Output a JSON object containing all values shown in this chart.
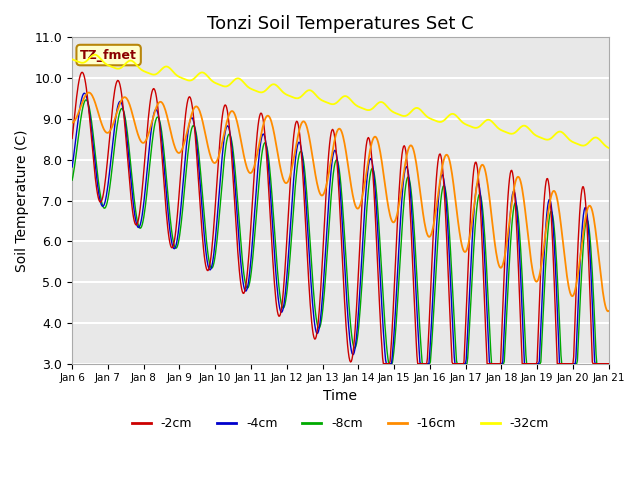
{
  "title": "Tonzi Soil Temperatures Set C",
  "xlabel": "Time",
  "ylabel": "Soil Temperature (C)",
  "ylim": [
    3.0,
    11.0
  ],
  "yticks": [
    3.0,
    4.0,
    5.0,
    6.0,
    7.0,
    8.0,
    9.0,
    10.0,
    11.0
  ],
  "x_labels": [
    "Jan 6",
    "Jan 7",
    "Jan 8",
    "Jan 9",
    "Jan 10",
    "Jan 11",
    "Jan 12",
    "Jan 13",
    "Jan 14",
    "Jan 15",
    "Jan 16",
    "Jan 17",
    "Jan 18",
    "Jan 19",
    "Jan 20",
    "Jan 21"
  ],
  "annotation_label": "TZ_fmet",
  "annotation_color": "#8B0000",
  "annotation_bg": "#FFFFCC",
  "annotation_border": "#B8860B",
  "series_colors": {
    "-2cm": "#CC0000",
    "-4cm": "#0000CC",
    "-8cm": "#00AA00",
    "-16cm": "#FF8C00",
    "-32cm": "#FFFF00"
  },
  "legend_labels": [
    "-2cm",
    "-4cm",
    "-8cm",
    "-16cm",
    "-32cm"
  ],
  "background_color": "#E8E8E8",
  "grid_color": "#FFFFFF",
  "title_fontsize": 13
}
